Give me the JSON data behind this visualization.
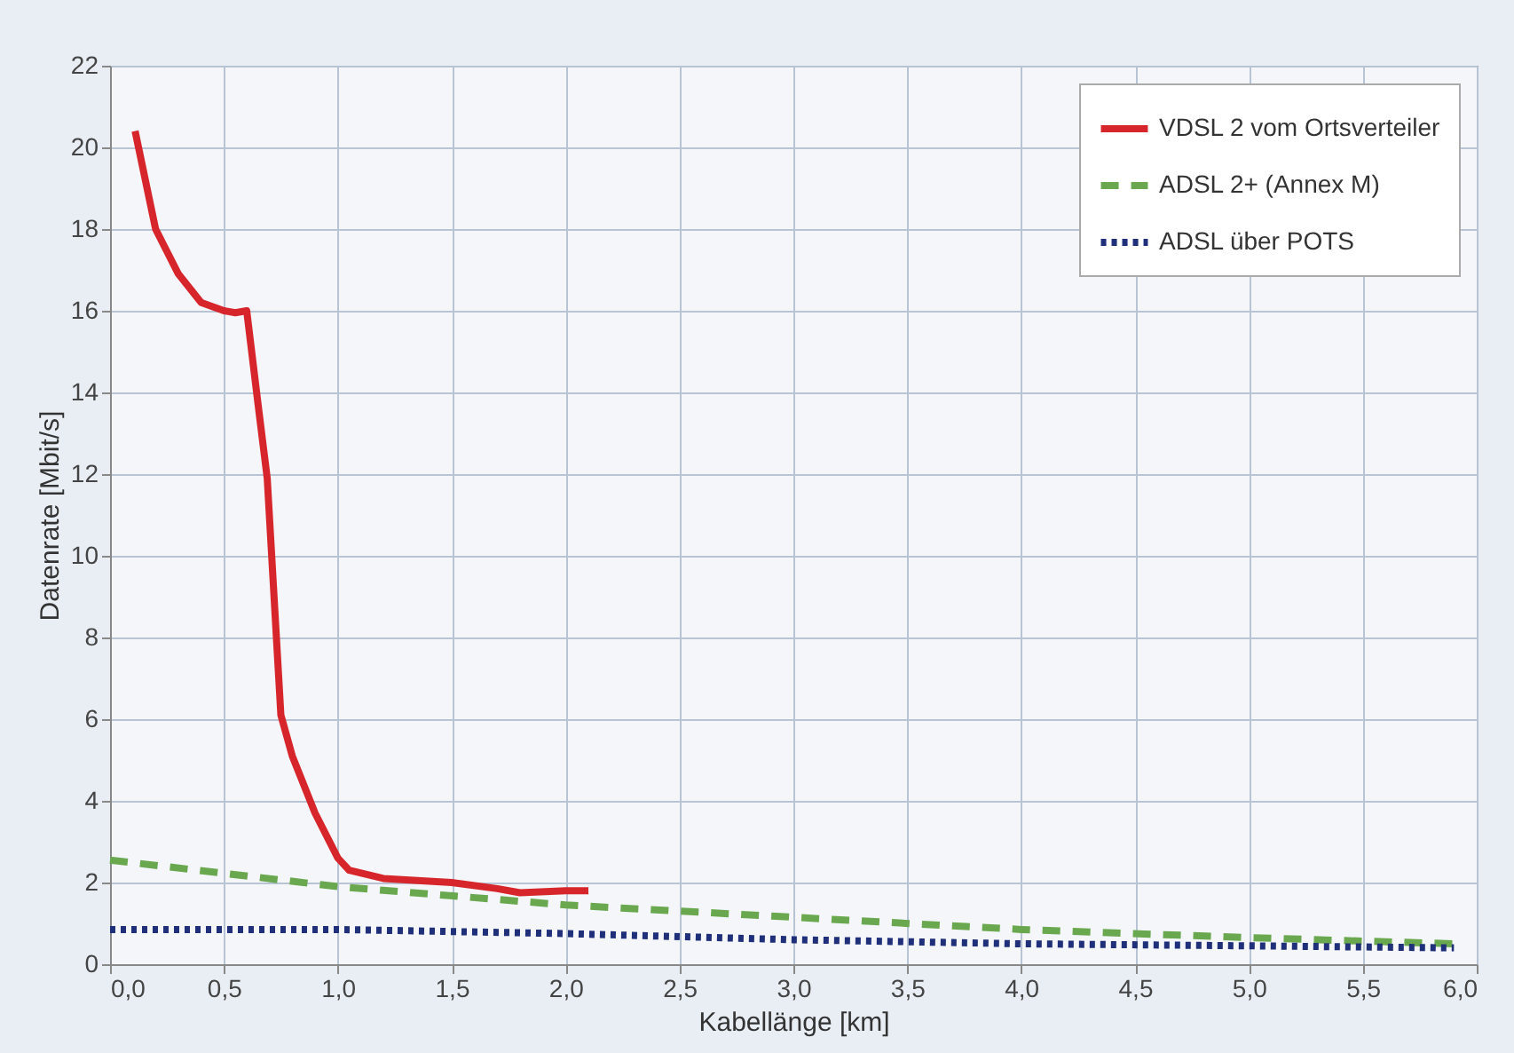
{
  "chart_data": {
    "type": "line",
    "xlabel": "Kabellänge [km]",
    "ylabel": "Datenrate [Mbit/s]",
    "xlim": [
      0,
      6
    ],
    "ylim": [
      0,
      22
    ],
    "xticks": [
      {
        "value": 0,
        "label": "0,0"
      },
      {
        "value": 0.5,
        "label": "0,5"
      },
      {
        "value": 1,
        "label": "1,0"
      },
      {
        "value": 1.5,
        "label": "1,5"
      },
      {
        "value": 2,
        "label": "2,0"
      },
      {
        "value": 2.5,
        "label": "2,5"
      },
      {
        "value": 3,
        "label": "3,0"
      },
      {
        "value": 3.5,
        "label": "3,5"
      },
      {
        "value": 4,
        "label": "4,0"
      },
      {
        "value": 4.5,
        "label": "4,5"
      },
      {
        "value": 5,
        "label": "5,0"
      },
      {
        "value": 5.5,
        "label": "5,5"
      },
      {
        "value": 6,
        "label": "6,0"
      }
    ],
    "yticks": [
      0,
      2,
      4,
      6,
      8,
      10,
      12,
      14,
      16,
      18,
      20,
      22
    ],
    "grid": true,
    "legend": "top right",
    "marker": "none",
    "series": [
      {
        "name": "VDSL 2 vom Ortsverteiler",
        "color": "#d7262b",
        "line_style": "solid",
        "x": [
          0.11,
          0.2,
          0.3,
          0.4,
          0.5,
          0.55,
          0.6,
          0.65,
          0.69,
          0.75,
          0.8,
          0.9,
          1.0,
          1.05,
          1.2,
          1.5,
          1.7,
          1.8,
          2.0,
          2.1
        ],
        "values": [
          20.4,
          18,
          16.9,
          16.2,
          16,
          15.95,
          16,
          13.7,
          11.9,
          6.1,
          5.1,
          3.7,
          2.6,
          2.3,
          2.1,
          2.0,
          1.85,
          1.75,
          1.8,
          1.8
        ]
      },
      {
        "name": "ADSL 2+ (Annex M)",
        "color": "#6aa84f",
        "line_style": "dashed",
        "x": [
          0,
          1,
          2,
          3,
          4,
          5,
          5.9
        ],
        "values": [
          2.55,
          1.9,
          1.45,
          1.15,
          0.85,
          0.65,
          0.5
        ]
      },
      {
        "name": "ADSL über POTS",
        "color": "#1f2f7a",
        "line_style": "dotted",
        "x": [
          0,
          1,
          2,
          3,
          4,
          5,
          5.9
        ],
        "values": [
          0.85,
          0.85,
          0.75,
          0.6,
          0.5,
          0.45,
          0.4
        ]
      }
    ]
  }
}
